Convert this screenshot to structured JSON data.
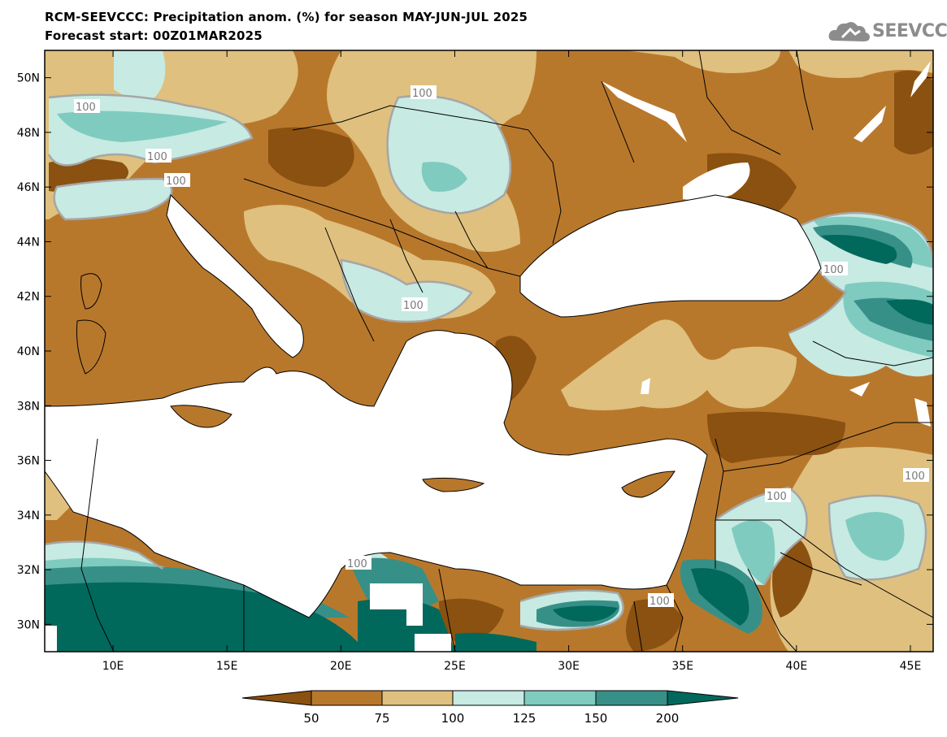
{
  "header": {
    "title_line1": "RCM-SEEVCCC: Precipitation anom. (%) for season MAY-JUN-JUL 2025",
    "title_line2": "Forecast start: 00Z01MAR2025"
  },
  "logo": {
    "text": "SEEVCCC",
    "icon": "cloud-logo-icon"
  },
  "map": {
    "lat_labels": [
      "50N",
      "48N",
      "46N",
      "44N",
      "42N",
      "40N",
      "38N",
      "36N",
      "34N",
      "32N",
      "30N"
    ],
    "lon_labels": [
      "10E",
      "15E",
      "20E",
      "25E",
      "30E",
      "35E",
      "40E",
      "45E"
    ],
    "contour_labels": [
      "100",
      "100",
      "100",
      "100",
      "100",
      "100",
      "100",
      "100",
      "100",
      "100",
      "100"
    ],
    "lon_range": [
      7,
      46
    ],
    "lat_range": [
      29,
      51
    ]
  },
  "colorbar": {
    "levels": [
      "50",
      "75",
      "100",
      "125",
      "150",
      "200"
    ],
    "colors": {
      "below_50": "#8a5110",
      "50_75": "#b8782c",
      "75_100": "#dfc07e",
      "100_125": "#c7eae3",
      "125_150": "#7fcbbf",
      "150_200": "#379087",
      "above_200": "#00695c"
    }
  }
}
